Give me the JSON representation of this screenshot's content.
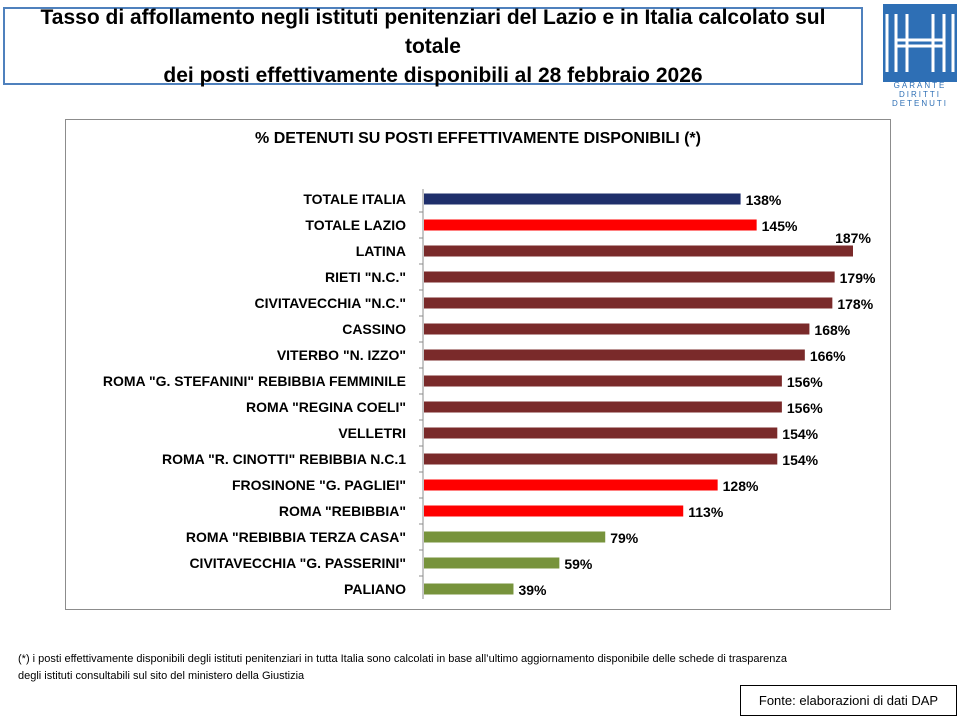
{
  "header": {
    "title_line1": "Tasso di affollamento negli istituti penitenziari del Lazio e in Italia calcolato sul totale",
    "title_line2": "dei posti effettivamente disponibili al 28 febbraio 2026"
  },
  "logo": {
    "line1": "GARANTE",
    "line2": "DIRITTI",
    "line3": "DETENUTI",
    "color": "#2e6fb5"
  },
  "chart_data": {
    "type": "bar",
    "orientation": "horizontal",
    "title": "% DETENUTI SU POSTI EFFETTIVAMENTE DISPONIBILI (*)",
    "value_suffix": "%",
    "xlim": [
      0,
      190
    ],
    "grid": false,
    "categories": [
      "TOTALE ITALIA",
      "TOTALE LAZIO",
      "LATINA",
      "RIETI \"N.C.\"",
      "CIVITAVECCHIA \"N.C.\"",
      "CASSINO",
      "VITERBO \"N. IZZO\"",
      "ROMA \"G. STEFANINI\" REBIBBIA FEMMINILE",
      "ROMA \"REGINA COELI\"",
      "VELLETRI",
      "ROMA \"R. CINOTTI\" REBIBBIA N.C.1",
      "FROSINONE \"G. PAGLIEI\"",
      "ROMA \"REBIBBIA\"",
      "ROMA \"REBIBBIA TERZA CASA\"",
      "CIVITAVECCHIA \"G. PASSERINI\"",
      "PALIANO"
    ],
    "values": [
      138,
      145,
      187,
      179,
      178,
      168,
      166,
      156,
      156,
      154,
      154,
      128,
      113,
      79,
      59,
      39
    ],
    "bar_colors": [
      "#1f2f6b",
      "#ff0000",
      "#7a2a2a",
      "#7a2a2a",
      "#7a2a2a",
      "#7a2a2a",
      "#7a2a2a",
      "#7a2a2a",
      "#7a2a2a",
      "#7a2a2a",
      "#7a2a2a",
      "#ff0000",
      "#ff0000",
      "#77933c",
      "#77933c",
      "#77933c"
    ]
  },
  "footnote": {
    "line1": "(*) i posti effettivamente disponibili  degli istituti penitenziari in tutta Italia sono calcolati in base all’ultimo aggiornamento disponibile  delle schede di trasparenza",
    "line2": "degli istituti consultabili sul sito del ministero della Giustizia"
  },
  "source": "Fonte: elaborazioni di dati DAP"
}
